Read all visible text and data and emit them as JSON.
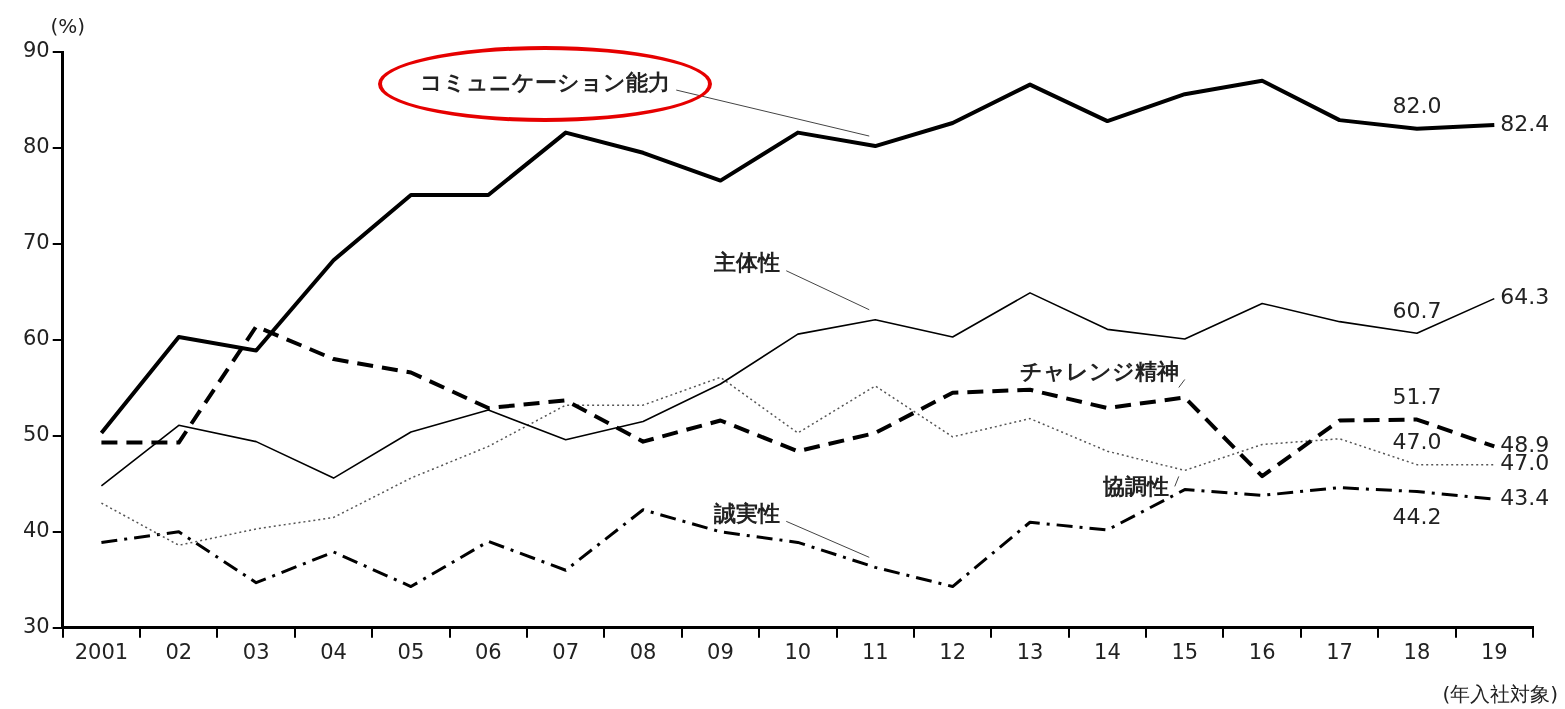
{
  "chart_data": {
    "type": "line",
    "ylabel": "(%)",
    "xlabel": "(年入社対象)",
    "categories": [
      "2001",
      "02",
      "03",
      "04",
      "05",
      "06",
      "07",
      "08",
      "09",
      "10",
      "11",
      "12",
      "13",
      "14",
      "15",
      "16",
      "17",
      "18",
      "19"
    ],
    "series": [
      {
        "name": "コミュニケーション能力",
        "color": "#000000",
        "line_style": "solid",
        "values": [
          50.3,
          60.3,
          58.9,
          68.3,
          75.1,
          75.1,
          81.6,
          79.5,
          76.6,
          81.6,
          80.2,
          82.6,
          86.6,
          82.8,
          85.6,
          87.0,
          82.9,
          82.0,
          82.4
        ],
        "value_labels": [
          null,
          null,
          null,
          null,
          null,
          null,
          null,
          null,
          null,
          null,
          null,
          null,
          null,
          null,
          null,
          null,
          null,
          "82.0",
          "82.4"
        ]
      },
      {
        "name": "主体性",
        "color": "#000000",
        "line_style": "solid",
        "values": [
          44.8,
          51.1,
          49.4,
          45.6,
          50.4,
          52.7,
          49.6,
          51.5,
          55.4,
          60.6,
          62.1,
          60.3,
          64.9,
          61.1,
          60.1,
          63.8,
          61.9,
          60.7,
          64.3
        ],
        "value_labels": [
          null,
          null,
          null,
          null,
          null,
          null,
          null,
          null,
          null,
          null,
          null,
          null,
          null,
          null,
          null,
          null,
          null,
          "60.7",
          "64.3"
        ]
      },
      {
        "name": "チャレンジ精神",
        "color": "#000000",
        "line_style": "dashed",
        "values": [
          49.3,
          49.3,
          61.4,
          58.0,
          56.6,
          52.9,
          53.7,
          49.4,
          51.6,
          48.4,
          50.3,
          54.5,
          54.8,
          52.9,
          54.0,
          45.8,
          51.6,
          51.7,
          48.9
        ],
        "value_labels": [
          null,
          null,
          null,
          null,
          null,
          null,
          null,
          null,
          null,
          null,
          null,
          null,
          null,
          null,
          null,
          null,
          null,
          "51.7",
          "48.9"
        ]
      },
      {
        "name": "協調性",
        "color": "#555555",
        "line_style": "dotted",
        "values": [
          43.0,
          38.6,
          40.3,
          41.5,
          45.6,
          48.9,
          53.2,
          53.2,
          56.1,
          50.3,
          55.2,
          49.9,
          51.8,
          48.4,
          46.4,
          49.1,
          49.7,
          47.0,
          47.0
        ],
        "value_labels": [
          null,
          null,
          null,
          null,
          null,
          null,
          null,
          null,
          null,
          null,
          null,
          null,
          null,
          null,
          null,
          null,
          null,
          "47.0",
          "47.0"
        ]
      },
      {
        "name": "誠実性",
        "color": "#000000",
        "line_style": "dashdot",
        "values": [
          38.9,
          40.0,
          34.7,
          37.9,
          34.3,
          39.0,
          36.0,
          42.3,
          40.0,
          38.9,
          36.3,
          34.3,
          41.0,
          40.2,
          44.4,
          43.8,
          44.6,
          44.2,
          43.4
        ],
        "value_labels": [
          null,
          null,
          null,
          null,
          null,
          null,
          null,
          null,
          null,
          null,
          null,
          null,
          null,
          null,
          null,
          null,
          null,
          "44.2",
          "43.4"
        ]
      }
    ],
    "ylim": [
      30,
      90
    ],
    "yticks": [
      30,
      40,
      50,
      60,
      70,
      80,
      90
    ],
    "grid": false,
    "legend": false,
    "marker": "none"
  }
}
